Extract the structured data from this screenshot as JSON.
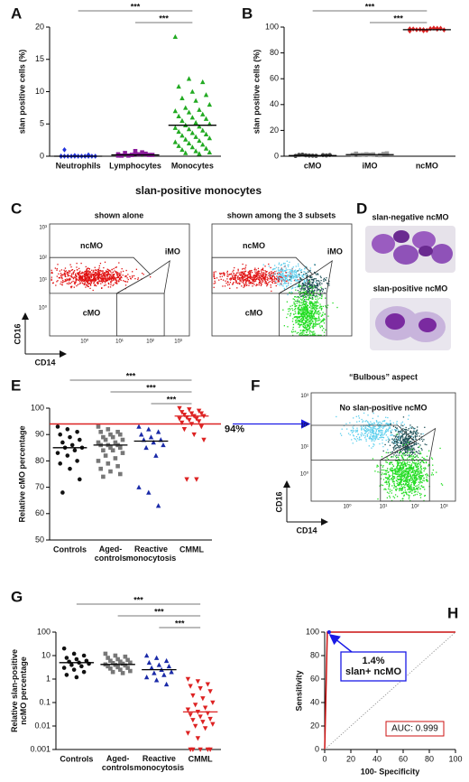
{
  "figure": {
    "panel_labels": [
      "A",
      "B",
      "C",
      "D",
      "E",
      "F",
      "G",
      "H"
    ]
  },
  "chart_data": [
    {
      "type": "dot",
      "ylabel": "slan positive cells (%)",
      "categories": [
        "Neutrophils",
        "Lymphocytes",
        "Monocytes"
      ],
      "ylim": [
        0,
        20
      ],
      "yticks": [
        0,
        5,
        10,
        15,
        20
      ],
      "groups": [
        {
          "color": "#2233dd",
          "marker": "diamond",
          "median": 0,
          "values": [
            0,
            0,
            0,
            0,
            0,
            0,
            0,
            0,
            0,
            0,
            0,
            0,
            0.1,
            0.2,
            1.0
          ]
        },
        {
          "color": "#8a1a9a",
          "marker": "square",
          "median": 0.2,
          "values": [
            0.1,
            0.2,
            0.3,
            0.1,
            0.4,
            0.2,
            0.5,
            0.3,
            0.2,
            0.1,
            0.6,
            0.3,
            0.2,
            0.4,
            0.1,
            0.8
          ]
        },
        {
          "color": "#22aa22",
          "marker": "triangle",
          "median": 4.8,
          "values": [
            18.5,
            12,
            11.5,
            10.8,
            10,
            9.5,
            9,
            8.6,
            8,
            7.5,
            7.2,
            7,
            6.8,
            6.5,
            6.2,
            6,
            5.8,
            5.5,
            5.2,
            5,
            4.8,
            4.6,
            4.4,
            4.2,
            4,
            3.8,
            3.6,
            3.4,
            3.2,
            3,
            2.8,
            2.6,
            2.4,
            2.2,
            2,
            1.8,
            1.6,
            1.4,
            1.2,
            1,
            0.8,
            0.6,
            0.5,
            0.4
          ]
        }
      ],
      "brackets": [
        {
          "label": "***",
          "from": "Neutrophils",
          "to": "Monocytes"
        },
        {
          "label": "***",
          "from": "Lymphocytes",
          "to": "Monocytes"
        }
      ]
    },
    {
      "type": "dot",
      "ylabel": "slan positive cells (%)",
      "categories": [
        "cMO",
        "iMO",
        "ncMO"
      ],
      "ylim": [
        0,
        100
      ],
      "yticks": [
        0,
        20,
        40,
        60,
        80,
        100
      ],
      "groups": [
        {
          "color": "#444444",
          "marker": "circle",
          "median": 0.5,
          "values": [
            0.2,
            0.5,
            0.8,
            1,
            0.4,
            0.6,
            1.2,
            0.3,
            0.9,
            0.7
          ]
        },
        {
          "color": "#999999",
          "marker": "square",
          "median": 1.2,
          "values": [
            1,
            1.5,
            0.8,
            2,
            1.2,
            1.8,
            0.9,
            1.4,
            2.2,
            1.1
          ]
        },
        {
          "color": "#dd2222",
          "marker": "diamond",
          "median": 98,
          "values": [
            97,
            98,
            99,
            98.5,
            97.5,
            99,
            98,
            98.8,
            97.8,
            98.2,
            99.2,
            98.6,
            97.2,
            98.4
          ]
        }
      ],
      "brackets": [
        {
          "label": "***",
          "from": "cMO",
          "to": "ncMO"
        },
        {
          "label": "***",
          "from": "iMO",
          "to": "ncMO"
        }
      ]
    },
    {
      "type": "dot",
      "ylabel": "Relative cMO percentage",
      "categories": [
        "Controls",
        "Aged-\ncontrols",
        "Reactive\nmonocytosis",
        "CMML"
      ],
      "ylim": [
        50,
        100
      ],
      "yticks": [
        50,
        60,
        70,
        80,
        90,
        100
      ],
      "groups": [
        {
          "color": "#111111",
          "marker": "circle",
          "median": 85,
          "values": [
            93,
            92,
            91,
            90,
            89,
            88,
            87,
            86,
            85,
            85,
            84,
            83,
            82,
            80,
            79,
            77,
            73,
            68
          ]
        },
        {
          "color": "#777777",
          "marker": "square",
          "median": 86,
          "values": [
            93,
            92,
            91,
            91,
            90,
            90,
            89,
            89,
            88,
            88,
            87,
            87,
            86,
            86,
            86,
            85,
            85,
            84,
            84,
            83,
            82,
            81,
            80,
            79,
            78,
            77,
            76,
            75,
            74
          ]
        },
        {
          "color": "#1a2aa8",
          "marker": "triangle",
          "median": 87.5,
          "values": [
            93,
            92,
            91,
            90,
            89,
            88,
            88,
            87,
            86,
            85,
            82,
            70,
            68,
            63
          ]
        },
        {
          "color": "#dd2222",
          "marker": "invtriangle",
          "median": 97,
          "median_color": "#dd2222",
          "values": [
            100,
            99.5,
            99,
            98.5,
            98,
            98,
            97.5,
            97,
            97,
            96.5,
            96,
            96,
            95.5,
            95,
            94.5,
            94,
            93,
            92,
            90,
            88,
            73,
            73
          ]
        }
      ],
      "threshold": {
        "value": 94,
        "label": "94%",
        "color": "#dd2222"
      },
      "brackets": [
        {
          "label": "***",
          "from": "Controls",
          "to": "CMML"
        },
        {
          "label": "***",
          "from": "Aged-\ncontrols",
          "to": "CMML"
        },
        {
          "label": "***",
          "from": "Reactive\nmonocytosis",
          "to": "CMML"
        }
      ]
    },
    {
      "type": "dot",
      "log_scale": true,
      "ylabel": "Relative slan-positive\nncMO percentage",
      "categories": [
        "Controls",
        "Aged-\ncontrols",
        "Reactive\nmonocytosis",
        "CMML"
      ],
      "ylim": [
        0.001,
        100
      ],
      "yticks": [
        0.001,
        0.01,
        0.1,
        1,
        10,
        100
      ],
      "groups": [
        {
          "color": "#111111",
          "marker": "circle",
          "median": 5,
          "values": [
            20,
            12,
            10,
            8,
            7,
            6,
            5.5,
            5,
            4.5,
            4,
            3.5,
            3,
            2.5,
            2,
            1.5,
            1.2
          ]
        },
        {
          "color": "#777777",
          "marker": "square",
          "median": 4.2,
          "values": [
            12,
            10,
            9,
            8,
            7,
            6.5,
            6,
            5.5,
            5,
            4.8,
            4.5,
            4.2,
            4,
            3.8,
            3.5,
            3.2,
            3,
            2.8,
            2.5,
            2.2,
            2,
            1.8
          ]
        },
        {
          "color": "#1a2aa8",
          "marker": "triangle",
          "median": 2.5,
          "values": [
            10,
            8,
            6,
            5,
            4,
            3.5,
            3,
            2.5,
            2,
            1.8,
            1.5,
            1.2,
            0.9,
            0.6
          ]
        },
        {
          "color": "#dd2222",
          "marker": "invtriangle",
          "median": 0.04,
          "median_color": "#dd2222",
          "values": [
            1,
            0.8,
            0.6,
            0.5,
            0.4,
            0.3,
            0.2,
            0.15,
            0.1,
            0.08,
            0.06,
            0.05,
            0.04,
            0.035,
            0.03,
            0.025,
            0.02,
            0.018,
            0.015,
            0.012,
            0.01,
            0.008,
            0.005,
            0.003,
            0.001,
            0.001,
            0.001,
            0.001,
            0.001
          ]
        }
      ],
      "brackets": [
        {
          "label": "***",
          "from": "Controls",
          "to": "CMML"
        },
        {
          "label": "***",
          "from": "Aged-\ncontrols",
          "to": "CMML"
        },
        {
          "label": "***",
          "from": "Reactive\nmonocytosis",
          "to": "CMML"
        }
      ]
    },
    {
      "type": "line",
      "xlabel": "100- Specificity",
      "ylabel": "Sensitivity",
      "xlim": [
        0,
        100
      ],
      "ylim": [
        0,
        100
      ],
      "xticks": [
        0,
        20,
        40,
        60,
        80,
        100
      ],
      "yticks": [
        0,
        20,
        40,
        60,
        80,
        100
      ],
      "series": [
        {
          "color": "#cc1111",
          "x": [
            0,
            2,
            100
          ],
          "values": [
            0,
            100,
            100
          ]
        },
        {
          "color": "#999999",
          "dash": true,
          "x": [
            0,
            100
          ],
          "values": [
            0,
            100
          ]
        }
      ],
      "annotations": [
        {
          "text": "1.4%\nslan+ ncMO",
          "color": "#1a1ae6"
        },
        {
          "text": "AUC: 0.999",
          "color": "#cc1111"
        }
      ]
    }
  ],
  "panel_c": {
    "title": "slan-positive monocytes",
    "left_title": "shown alone",
    "right_title": "shown among the 3 subsets",
    "gates": [
      "ncMO",
      "iMO",
      "cMO"
    ],
    "x_axis": "CD14",
    "y_axis": "CD16",
    "ticks": [
      "10⁰",
      "10¹",
      "10²",
      "10³"
    ]
  },
  "panel_d": {
    "top": "slan-negative ncMO",
    "bottom": "slan-positive ncMO"
  },
  "panel_f": {
    "title": "“Bulbous” aspect",
    "subtitle": "No slan-positive ncMO",
    "x_axis": "CD14",
    "y_axis": "CD16",
    "ticks": [
      "10⁰",
      "10¹",
      "10²",
      "10³"
    ]
  }
}
